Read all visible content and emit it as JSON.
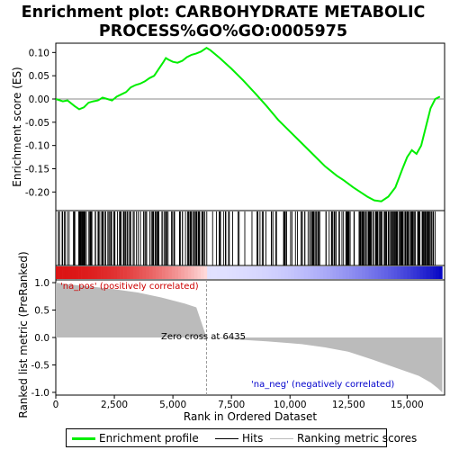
{
  "title_line1": "Enrichment plot: CARBOHYDRATE METABOLIC",
  "title_line2": "PROCESS%GO%GO:0005975",
  "es_ylabel": "Enrichment score (ES)",
  "rank_ylabel": "Ranked list metric (PreRanked)",
  "xlabel": "Rank in Ordered Dataset",
  "pos_label": "'na_pos' (positively correlated)",
  "neg_label": "'na_neg' (negatively correlated)",
  "zero_cross_label": "Zero cross at 6435",
  "legend": {
    "enrichment": "Enrichment profile",
    "hits": "Hits",
    "ranking": "Ranking metric scores"
  },
  "colors": {
    "enrichment_line": "#00ee00",
    "hits": "#000000",
    "ranking_fill": "#bbbbbb",
    "pos_text": "#cc0000",
    "neg_text": "#0000cc"
  },
  "chart_data": {
    "type": "line",
    "x_range": [
      0,
      16600
    ],
    "x_ticks": [
      0,
      2500,
      5000,
      7500,
      10000,
      12500,
      15000
    ],
    "x_tick_labels": [
      "0",
      "2,500",
      "5,000",
      "7,500",
      "10,000",
      "12,500",
      "15,000"
    ],
    "es_ylim": [
      -0.24,
      0.12
    ],
    "es_yticks": [
      0.1,
      0.05,
      0.0,
      -0.05,
      -0.1,
      -0.15,
      -0.2
    ],
    "es_ytick_labels": [
      "0.10",
      "0.05",
      "0.00",
      "-0.05",
      "-0.10",
      "-0.15",
      "-0.20"
    ],
    "rank_ylim": [
      -1.05,
      1.05
    ],
    "rank_yticks": [
      1.0,
      0.5,
      0.0,
      -0.5,
      -1.0
    ],
    "rank_ytick_labels": [
      "1.0",
      "0.5",
      "0.0",
      "-0.5",
      "-1.0"
    ],
    "zero_cross": 6435,
    "total_genes": 16500,
    "enrichment_profile": [
      [
        0,
        0.0
      ],
      [
        300,
        -0.005
      ],
      [
        500,
        -0.003
      ],
      [
        800,
        -0.015
      ],
      [
        1000,
        -0.022
      ],
      [
        1200,
        -0.018
      ],
      [
        1400,
        -0.008
      ],
      [
        1600,
        -0.005
      ],
      [
        1800,
        -0.003
      ],
      [
        2000,
        0.003
      ],
      [
        2200,
        0.0
      ],
      [
        2400,
        -0.003
      ],
      [
        2600,
        0.005
      ],
      [
        2800,
        0.01
      ],
      [
        3000,
        0.015
      ],
      [
        3200,
        0.025
      ],
      [
        3400,
        0.03
      ],
      [
        3600,
        0.033
      ],
      [
        3800,
        0.038
      ],
      [
        4000,
        0.045
      ],
      [
        4200,
        0.05
      ],
      [
        4400,
        0.065
      ],
      [
        4600,
        0.08
      ],
      [
        4700,
        0.088
      ],
      [
        4800,
        0.085
      ],
      [
        5000,
        0.08
      ],
      [
        5200,
        0.078
      ],
      [
        5400,
        0.082
      ],
      [
        5600,
        0.09
      ],
      [
        5800,
        0.095
      ],
      [
        6000,
        0.098
      ],
      [
        6200,
        0.102
      ],
      [
        6435,
        0.11
      ],
      [
        6600,
        0.105
      ],
      [
        7000,
        0.088
      ],
      [
        7500,
        0.065
      ],
      [
        8000,
        0.04
      ],
      [
        8500,
        0.013
      ],
      [
        9000,
        -0.015
      ],
      [
        9500,
        -0.045
      ],
      [
        10000,
        -0.07
      ],
      [
        10500,
        -0.095
      ],
      [
        11000,
        -0.12
      ],
      [
        11500,
        -0.145
      ],
      [
        12000,
        -0.165
      ],
      [
        12300,
        -0.175
      ],
      [
        12700,
        -0.19
      ],
      [
        13000,
        -0.2
      ],
      [
        13300,
        -0.21
      ],
      [
        13600,
        -0.218
      ],
      [
        13900,
        -0.22
      ],
      [
        14200,
        -0.21
      ],
      [
        14500,
        -0.19
      ],
      [
        14800,
        -0.15
      ],
      [
        15000,
        -0.125
      ],
      [
        15200,
        -0.11
      ],
      [
        15400,
        -0.118
      ],
      [
        15600,
        -0.1
      ],
      [
        15800,
        -0.06
      ],
      [
        16000,
        -0.02
      ],
      [
        16200,
        0.0
      ],
      [
        16400,
        0.005
      ]
    ],
    "ranking_metric": [
      [
        0,
        1.0
      ],
      [
        500,
        0.97
      ],
      [
        1500,
        0.93
      ],
      [
        2500,
        0.88
      ],
      [
        3500,
        0.82
      ],
      [
        4500,
        0.73
      ],
      [
        5500,
        0.62
      ],
      [
        6000,
        0.55
      ],
      [
        6435,
        0.0
      ],
      [
        7500,
        -0.03
      ],
      [
        9000,
        -0.07
      ],
      [
        10500,
        -0.12
      ],
      [
        11500,
        -0.18
      ],
      [
        12500,
        -0.26
      ],
      [
        13500,
        -0.4
      ],
      [
        14500,
        -0.55
      ],
      [
        15500,
        -0.7
      ],
      [
        16000,
        -0.82
      ],
      [
        16300,
        -0.92
      ],
      [
        16500,
        -1.0
      ]
    ],
    "hit_clusters": [
      [
        50,
        400,
        8
      ],
      [
        400,
        900,
        6
      ],
      [
        900,
        1600,
        22
      ],
      [
        1600,
        2500,
        18
      ],
      [
        2500,
        3500,
        22
      ],
      [
        3500,
        4800,
        30
      ],
      [
        4800,
        5400,
        8
      ],
      [
        5400,
        6450,
        30
      ],
      [
        6600,
        7400,
        10
      ],
      [
        7400,
        8500,
        6
      ],
      [
        8500,
        9500,
        14
      ],
      [
        9500,
        10500,
        12
      ],
      [
        10500,
        11500,
        18
      ],
      [
        11500,
        12500,
        24
      ],
      [
        12500,
        13300,
        16
      ],
      [
        13300,
        13800,
        26
      ],
      [
        13800,
        14300,
        14
      ],
      [
        14300,
        15200,
        40
      ],
      [
        15200,
        15900,
        30
      ],
      [
        15900,
        16250,
        8
      ]
    ]
  }
}
